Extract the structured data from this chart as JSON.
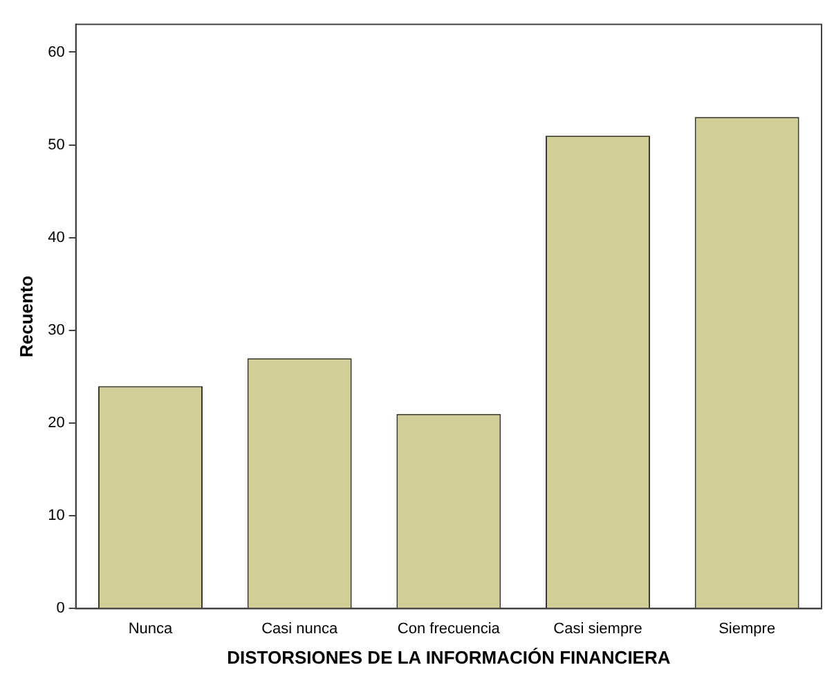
{
  "chart_data": {
    "type": "bar",
    "xlabel": "DISTORSIONES DE LA INFORMACIÓN FINANCIERA",
    "ylabel": "Recuento",
    "categories": [
      "Nunca",
      "Casi nunca",
      "Con frecuencia",
      "Casi siempre",
      "Siempre"
    ],
    "values": [
      24,
      27,
      21,
      51,
      53
    ],
    "color": "#d3ce97",
    "ylim": [
      0,
      63
    ],
    "yticks": [
      0,
      10,
      20,
      30,
      40,
      50,
      60
    ],
    "grid": false,
    "legend": false
  }
}
